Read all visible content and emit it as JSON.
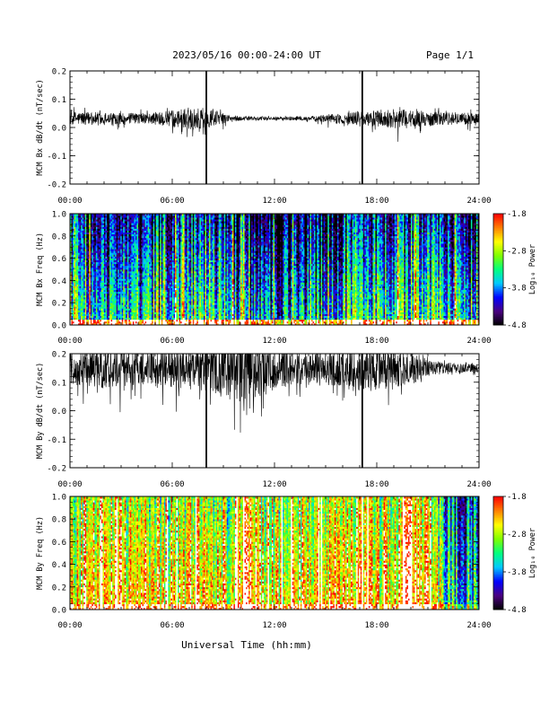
{
  "header": {
    "title": "2023/05/16  00:00-24:00 UT",
    "page_label": "Page 1/1"
  },
  "footer": {
    "xlabel": "Universal Time (hh:mm)"
  },
  "x_ticks": [
    "00:00",
    "06:00",
    "12:00",
    "18:00",
    "24:00"
  ],
  "colorbar": {
    "label": "Log₁₀ Power",
    "tick_labels": [
      "-1.8",
      "-2.8",
      "-3.8",
      "-4.8"
    ],
    "range": [
      -4.8,
      -1.8
    ],
    "colors": [
      "#000000",
      "#4b0080",
      "#0000ff",
      "#00c8ff",
      "#00ff7f",
      "#7fff00",
      "#ffff00",
      "#ff8000",
      "#ff0000"
    ]
  },
  "chart_data": [
    {
      "type": "line",
      "ylabel": "MCM Bx dB/dt (nT/sec)",
      "xlim": [
        0,
        24
      ],
      "ylim": [
        -0.2,
        0.2
      ],
      "y_ticks": [
        {
          "value": 0.2,
          "label": "0.2"
        },
        {
          "value": 0.1,
          "label": "0.1"
        },
        {
          "value": 0.0,
          "label": "0.0"
        },
        {
          "value": -0.1,
          "label": "-0.1"
        },
        {
          "value": -0.2,
          "label": "-0.2"
        }
      ],
      "baseline": 0.032,
      "envelope": {
        "hours": [
          0,
          2,
          4,
          6,
          7,
          8,
          9,
          10,
          12,
          14,
          16,
          17,
          18,
          19,
          20,
          22,
          24
        ],
        "amplitude": [
          0.025,
          0.022,
          0.018,
          0.028,
          0.04,
          0.035,
          0.018,
          0.008,
          0.006,
          0.008,
          0.02,
          0.025,
          0.03,
          0.035,
          0.03,
          0.025,
          0.02
        ]
      },
      "spikes": [
        {
          "hour": 8.0,
          "min": -0.2,
          "max": 0.2
        },
        {
          "hour": 17.15,
          "min": -0.2,
          "max": 0.2
        }
      ]
    },
    {
      "type": "heatmap",
      "ylabel": "MCM Bx Freq (Hz)",
      "xlim": [
        0,
        24
      ],
      "ylim": [
        0.0,
        1.0
      ],
      "y_ticks": [
        {
          "value": 1.0,
          "label": "1.0"
        },
        {
          "value": 0.8,
          "label": "0.8"
        },
        {
          "value": 0.6,
          "label": "0.6"
        },
        {
          "value": 0.4,
          "label": "0.4"
        },
        {
          "value": 0.2,
          "label": "0.2"
        },
        {
          "value": 0.0,
          "label": "0.0"
        }
      ],
      "zlim": [
        -4.8,
        -1.8
      ],
      "level_profile": {
        "hours": [
          0,
          3,
          6,
          8,
          10,
          12,
          15,
          18,
          21,
          24
        ],
        "levels": [
          -3.7,
          -3.9,
          -3.8,
          -3.5,
          -4.0,
          -4.2,
          -4.0,
          -3.7,
          -3.6,
          -4.1
        ]
      },
      "low_freq_boost": 1.6,
      "freq_slope": 1.0
    },
    {
      "type": "line",
      "ylabel": "MCM By dB/dt (nT/sec)",
      "xlim": [
        0,
        24
      ],
      "ylim": [
        -0.2,
        0.2
      ],
      "y_ticks": [
        {
          "value": 0.2,
          "label": "0.2"
        },
        {
          "value": 0.1,
          "label": "0.1"
        },
        {
          "value": 0.0,
          "label": "0.0"
        },
        {
          "value": -0.1,
          "label": "-0.1"
        },
        {
          "value": -0.2,
          "label": "-0.2"
        }
      ],
      "baseline": 0.15,
      "envelope": {
        "hours": [
          0,
          2,
          4,
          6,
          8,
          9,
          10,
          11,
          12,
          14,
          16,
          17,
          18,
          20,
          21,
          22,
          24
        ],
        "amplitude": [
          0.06,
          0.07,
          0.06,
          0.07,
          0.08,
          0.09,
          0.12,
          0.1,
          0.07,
          0.06,
          0.07,
          0.09,
          0.08,
          0.06,
          0.03,
          0.02,
          0.015
        ]
      },
      "spikes": [
        {
          "hour": 8.0,
          "min": -0.2,
          "max": 0.2
        },
        {
          "hour": 17.15,
          "min": -0.2,
          "max": 0.2
        }
      ]
    },
    {
      "type": "heatmap",
      "ylabel": "MCM By Freq (Hz)",
      "xlim": [
        0,
        24
      ],
      "ylim": [
        0.0,
        1.0
      ],
      "y_ticks": [
        {
          "value": 1.0,
          "label": "1.0"
        },
        {
          "value": 0.8,
          "label": "0.8"
        },
        {
          "value": 0.6,
          "label": "0.6"
        },
        {
          "value": 0.4,
          "label": "0.4"
        },
        {
          "value": 0.2,
          "label": "0.2"
        },
        {
          "value": 0.0,
          "label": "0.0"
        }
      ],
      "zlim": [
        -4.8,
        -1.8
      ],
      "level_profile": {
        "hours": [
          0,
          2,
          4,
          6,
          8,
          9,
          10,
          11,
          12,
          14,
          16,
          17,
          18,
          19,
          20,
          21,
          22,
          23,
          24
        ],
        "levels": [
          -2.6,
          -2.2,
          -2.5,
          -2.7,
          -2.4,
          -2.8,
          -2.1,
          -2.3,
          -2.6,
          -2.4,
          -2.5,
          -2.2,
          -2.8,
          -2.5,
          -2.0,
          -2.3,
          -3.4,
          -3.8,
          -3.9
        ]
      },
      "low_freq_boost": 0.6,
      "freq_slope": 0.5
    }
  ]
}
